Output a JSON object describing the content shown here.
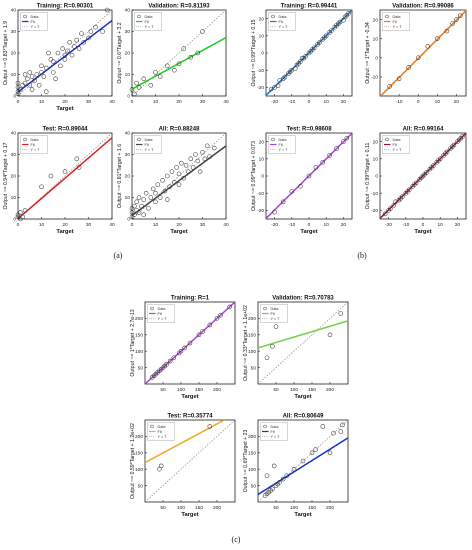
{
  "captions": [
    "(a)",
    "(b)",
    "(c)"
  ],
  "legend_labels": {
    "data": "Data",
    "fit": "Fit",
    "identity": "Y = T"
  },
  "chart_data": [
    {
      "id": "a-training",
      "type": "scatter",
      "group": "a",
      "title": "Training: R=0.90301",
      "xlabel": "Target",
      "ylabel": "Output ~= 0.83*Target + 1.9",
      "xlim": [
        0,
        40
      ],
      "ylim": [
        0,
        40
      ],
      "xticks": [
        0,
        10,
        20,
        30,
        40
      ],
      "yticks": [
        0,
        10,
        20,
        30,
        40
      ],
      "fit": {
        "slope": 0.83,
        "intercept": 1.9,
        "color": "#1030c8"
      },
      "points": [
        [
          0,
          2
        ],
        [
          0,
          4
        ],
        [
          0,
          6
        ],
        [
          0,
          1
        ],
        [
          1,
          3
        ],
        [
          2,
          5
        ],
        [
          3,
          6
        ],
        [
          3,
          10
        ],
        [
          4,
          8
        ],
        [
          5,
          5
        ],
        [
          5,
          11
        ],
        [
          6,
          3
        ],
        [
          6,
          9
        ],
        [
          7,
          7
        ],
        [
          8,
          10
        ],
        [
          9,
          5
        ],
        [
          10,
          11
        ],
        [
          10,
          14
        ],
        [
          11,
          9
        ],
        [
          12,
          13
        ],
        [
          12,
          2
        ],
        [
          14,
          17
        ],
        [
          15,
          11
        ],
        [
          15,
          16
        ],
        [
          17,
          20
        ],
        [
          18,
          14
        ],
        [
          19,
          22
        ],
        [
          20,
          17
        ],
        [
          20,
          19
        ],
        [
          21,
          21
        ],
        [
          22,
          25
        ],
        [
          23,
          19
        ],
        [
          24,
          23
        ],
        [
          25,
          26
        ],
        [
          26,
          22
        ],
        [
          27,
          29
        ],
        [
          28,
          25
        ],
        [
          30,
          27
        ],
        [
          31,
          30
        ],
        [
          33,
          32
        ],
        [
          36,
          30
        ],
        [
          38,
          40
        ],
        [
          13,
          20
        ],
        [
          16,
          8
        ]
      ]
    },
    {
      "id": "a-validation",
      "type": "scatter",
      "group": "a",
      "title": "Validation: R=0.81193",
      "xlabel": "",
      "ylabel": "Output ~= 0.6*Target + 3.2",
      "xlim": [
        0,
        40
      ],
      "ylim": [
        0,
        40
      ],
      "xticks": [
        0,
        10,
        20,
        30,
        40
      ],
      "yticks": [
        0,
        10,
        20,
        30,
        40
      ],
      "fit": {
        "slope": 0.6,
        "intercept": 3.2,
        "color": "#20c820"
      },
      "points": [
        [
          0,
          3
        ],
        [
          1,
          1
        ],
        [
          2,
          6
        ],
        [
          3,
          4
        ],
        [
          5,
          8
        ],
        [
          8,
          5
        ],
        [
          10,
          11
        ],
        [
          12,
          9
        ],
        [
          15,
          14
        ],
        [
          18,
          12
        ],
        [
          20,
          15
        ],
        [
          22,
          22
        ],
        [
          25,
          18
        ],
        [
          28,
          20
        ],
        [
          30,
          30
        ]
      ]
    },
    {
      "id": "a-test",
      "type": "scatter",
      "group": "a",
      "title": "Test: R=0.89044",
      "xlabel": "Target",
      "ylabel": "Output ~= 0.94*Target + 0.17",
      "xlim": [
        0,
        40
      ],
      "ylim": [
        0,
        40
      ],
      "xticks": [
        0,
        10,
        20,
        30,
        40
      ],
      "yticks": [
        0,
        10,
        20,
        30,
        40
      ],
      "fit": {
        "slope": 0.94,
        "intercept": 0.17,
        "color": "#e02020"
      },
      "points": [
        [
          0,
          1
        ],
        [
          0,
          2
        ],
        [
          1,
          0
        ],
        [
          1,
          3
        ],
        [
          2,
          1
        ],
        [
          3,
          4
        ],
        [
          10,
          15
        ],
        [
          14,
          20
        ],
        [
          20,
          22
        ],
        [
          25,
          28
        ],
        [
          26,
          24
        ]
      ]
    },
    {
      "id": "a-all",
      "type": "scatter",
      "group": "a",
      "title": "All: R=0.88248",
      "xlabel": "Target",
      "ylabel": "Output ~= 0.81*Target + 1.6",
      "xlim": [
        0,
        40
      ],
      "ylim": [
        0,
        40
      ],
      "xticks": [
        0,
        10,
        20,
        30,
        40
      ],
      "yticks": [
        0,
        10,
        20,
        30,
        40
      ],
      "fit": {
        "slope": 0.81,
        "intercept": 1.6,
        "color": "#444444"
      },
      "points": [
        [
          0,
          1
        ],
        [
          0,
          3
        ],
        [
          0,
          5
        ],
        [
          1,
          2
        ],
        [
          1,
          6
        ],
        [
          2,
          4
        ],
        [
          2,
          8
        ],
        [
          3,
          3
        ],
        [
          3,
          10
        ],
        [
          4,
          6
        ],
        [
          5,
          9
        ],
        [
          5,
          2
        ],
        [
          6,
          12
        ],
        [
          7,
          5
        ],
        [
          8,
          10
        ],
        [
          9,
          14
        ],
        [
          10,
          8
        ],
        [
          10,
          12
        ],
        [
          11,
          16
        ],
        [
          12,
          10
        ],
        [
          13,
          18
        ],
        [
          14,
          13
        ],
        [
          15,
          20
        ],
        [
          15,
          9
        ],
        [
          16,
          15
        ],
        [
          17,
          22
        ],
        [
          18,
          17
        ],
        [
          19,
          24
        ],
        [
          20,
          16
        ],
        [
          20,
          21
        ],
        [
          21,
          26
        ],
        [
          22,
          19
        ],
        [
          23,
          25
        ],
        [
          24,
          22
        ],
        [
          25,
          28
        ],
        [
          26,
          24
        ],
        [
          27,
          30
        ],
        [
          28,
          27
        ],
        [
          29,
          22
        ],
        [
          30,
          31
        ],
        [
          31,
          28
        ],
        [
          32,
          34
        ],
        [
          33,
          29
        ],
        [
          35,
          33
        ],
        [
          38,
          41
        ]
      ]
    },
    {
      "id": "b-training",
      "type": "scatter",
      "group": "b",
      "title": "Training: R=0.99441",
      "xlabel": "",
      "ylabel": "Output ~= 0.99*Target + 0.15",
      "xlim": [
        -25,
        25
      ],
      "ylim": [
        -25,
        25
      ],
      "xticks": [
        -20,
        -10,
        0,
        10,
        20
      ],
      "yticks": [
        -20,
        -10,
        0,
        10,
        20
      ],
      "fit": {
        "slope": 0.99,
        "intercept": 0.15,
        "color": "#1a7ad8"
      },
      "points": [
        [
          -22,
          -21
        ],
        [
          -20,
          -20
        ],
        [
          -18,
          -19
        ],
        [
          -17,
          -16
        ],
        [
          -15,
          -15
        ],
        [
          -14,
          -14
        ],
        [
          -12,
          -12
        ],
        [
          -11,
          -11
        ],
        [
          -10,
          -10
        ],
        [
          -8,
          -9
        ],
        [
          -7,
          -7
        ],
        [
          -6,
          -6
        ],
        [
          -5,
          -5
        ],
        [
          -4,
          -3
        ],
        [
          -3,
          -3
        ],
        [
          -2,
          -2
        ],
        [
          0,
          0
        ],
        [
          1,
          1
        ],
        [
          2,
          2
        ],
        [
          3,
          3
        ],
        [
          5,
          5
        ],
        [
          6,
          6
        ],
        [
          8,
          8
        ],
        [
          9,
          9
        ],
        [
          10,
          10
        ],
        [
          12,
          12
        ],
        [
          13,
          13
        ],
        [
          15,
          15
        ],
        [
          16,
          16
        ],
        [
          17,
          17
        ],
        [
          18,
          18
        ],
        [
          20,
          19
        ],
        [
          21,
          21
        ],
        [
          22,
          22
        ],
        [
          23,
          23
        ]
      ]
    },
    {
      "id": "b-validation",
      "type": "scatter",
      "group": "b",
      "title": "Validation: R=0.99086",
      "xlabel": "",
      "ylabel": "Output ~= 1*Target + -0.34",
      "xlim": [
        -20,
        25
      ],
      "ylim": [
        -20,
        25
      ],
      "xticks": [
        -10,
        0,
        10,
        20
      ],
      "yticks": [
        -10,
        0,
        10,
        20
      ],
      "fit": {
        "slope": 1.0,
        "intercept": -0.34,
        "color": "#f07a20"
      },
      "points": [
        [
          -15,
          -15
        ],
        [
          -10,
          -11
        ],
        [
          -5,
          -5
        ],
        [
          0,
          0
        ],
        [
          5,
          6
        ],
        [
          10,
          10
        ],
        [
          15,
          14
        ],
        [
          18,
          18
        ],
        [
          20,
          20
        ],
        [
          22,
          22
        ]
      ]
    },
    {
      "id": "b-test",
      "type": "scatter",
      "group": "b",
      "title": "Test: R=0.98608",
      "xlabel": "Target",
      "ylabel": "Output ~= 0.99*Target + 0.073",
      "xlim": [
        -25,
        25
      ],
      "ylim": [
        -25,
        25
      ],
      "xticks": [
        -20,
        -10,
        0,
        10,
        20
      ],
      "yticks": [
        -20,
        -10,
        0,
        10,
        20
      ],
      "fit": {
        "slope": 0.99,
        "intercept": 0.073,
        "color": "#b040d8"
      },
      "points": [
        [
          -20,
          -21
        ],
        [
          -15,
          -15
        ],
        [
          -10,
          -9
        ],
        [
          -5,
          -6
        ],
        [
          0,
          0
        ],
        [
          4,
          5
        ],
        [
          8,
          8
        ],
        [
          12,
          12
        ],
        [
          16,
          16
        ],
        [
          20,
          20
        ],
        [
          22,
          22
        ]
      ]
    },
    {
      "id": "b-all",
      "type": "scatter",
      "group": "b",
      "title": "All: R=0.99164",
      "xlabel": "Target",
      "ylabel": "Output ~= 0.99*Target + 0.11",
      "xlim": [
        -25,
        25
      ],
      "ylim": [
        -25,
        25
      ],
      "xticks": [
        -20,
        -10,
        0,
        10,
        20
      ],
      "yticks": [
        -20,
        -10,
        0,
        10,
        20
      ],
      "fit": {
        "slope": 0.99,
        "intercept": 0.11,
        "color": "#901840"
      },
      "points": [
        [
          -22,
          -22
        ],
        [
          -20,
          -20
        ],
        [
          -19,
          -19
        ],
        [
          -17,
          -17
        ],
        [
          -16,
          -15
        ],
        [
          -14,
          -14
        ],
        [
          -13,
          -13
        ],
        [
          -12,
          -12
        ],
        [
          -10,
          -10
        ],
        [
          -9,
          -9
        ],
        [
          -8,
          -8
        ],
        [
          -6,
          -6
        ],
        [
          -5,
          -5
        ],
        [
          -4,
          -4
        ],
        [
          -2,
          -2
        ],
        [
          -1,
          -1
        ],
        [
          0,
          0
        ],
        [
          1,
          1
        ],
        [
          2,
          2
        ],
        [
          4,
          4
        ],
        [
          5,
          5
        ],
        [
          6,
          6
        ],
        [
          8,
          8
        ],
        [
          9,
          9
        ],
        [
          10,
          10
        ],
        [
          12,
          12
        ],
        [
          13,
          13
        ],
        [
          14,
          14
        ],
        [
          16,
          16
        ],
        [
          17,
          17
        ],
        [
          18,
          18
        ],
        [
          20,
          20
        ],
        [
          21,
          21
        ],
        [
          22,
          22
        ],
        [
          23,
          23
        ]
      ]
    },
    {
      "id": "c-training",
      "type": "scatter",
      "group": "c",
      "title": "Training: R=1",
      "xlabel": "Target",
      "ylabel": "Output ~= 1*Target + 2.7e-13",
      "xlim": [
        0,
        250
      ],
      "ylim": [
        0,
        250
      ],
      "xticks": [
        50,
        100,
        150,
        200
      ],
      "yticks": [
        50,
        100,
        150,
        200
      ],
      "fit": {
        "slope": 1.0,
        "intercept": 0,
        "color": "#b040d8"
      },
      "points": [
        [
          20,
          20
        ],
        [
          25,
          25
        ],
        [
          30,
          30
        ],
        [
          35,
          35
        ],
        [
          40,
          40
        ],
        [
          45,
          45
        ],
        [
          50,
          50
        ],
        [
          55,
          55
        ],
        [
          60,
          60
        ],
        [
          70,
          70
        ],
        [
          80,
          80
        ],
        [
          95,
          95
        ],
        [
          100,
          100
        ],
        [
          110,
          110
        ],
        [
          125,
          125
        ],
        [
          150,
          150
        ],
        [
          160,
          160
        ],
        [
          180,
          180
        ],
        [
          200,
          200
        ],
        [
          210,
          210
        ],
        [
          235,
          235
        ]
      ]
    },
    {
      "id": "c-validation",
      "type": "scatter",
      "group": "c",
      "title": "Validation: R=0.70783",
      "xlabel": "Target",
      "ylabel": "Output ~= 0.33*Target + 1.1e+02",
      "xlim": [
        0,
        250
      ],
      "ylim": [
        0,
        250
      ],
      "xticks": [
        50,
        100,
        150,
        200
      ],
      "yticks": [
        50,
        100,
        150,
        200
      ],
      "fit": {
        "slope": 0.33,
        "intercept": 110,
        "color": "#70d040"
      },
      "points": [
        [
          25,
          80
        ],
        [
          40,
          115
        ],
        [
          50,
          175
        ],
        [
          200,
          150
        ],
        [
          230,
          215
        ]
      ]
    },
    {
      "id": "c-test",
      "type": "scatter",
      "group": "c",
      "title": "Test: R=0.35774",
      "xlabel": "Target",
      "ylabel": "Output ~= 0.59*Target + 1.2e+02",
      "xlim": [
        0,
        250
      ],
      "ylim": [
        0,
        250
      ],
      "xticks": [
        50,
        100,
        150,
        200
      ],
      "yticks": [
        50,
        100,
        150,
        200
      ],
      "fit": {
        "slope": 0.59,
        "intercept": 120,
        "color": "#f0a820"
      },
      "points": [
        [
          40,
          100
        ],
        [
          45,
          110
        ],
        [
          180,
          230
        ]
      ]
    },
    {
      "id": "c-all",
      "type": "scatter",
      "group": "c",
      "title": "All: R=0.80649",
      "xlabel": "Target",
      "ylabel": "Output ~= 0.69*Target + 23",
      "xlim": [
        0,
        250
      ],
      "ylim": [
        0,
        250
      ],
      "xticks": [
        50,
        100,
        150,
        200
      ],
      "yticks": [
        50,
        100,
        150,
        200
      ],
      "fit": {
        "slope": 0.69,
        "intercept": 23,
        "color": "#1030c8"
      },
      "points": [
        [
          20,
          20
        ],
        [
          25,
          25
        ],
        [
          30,
          30
        ],
        [
          35,
          35
        ],
        [
          40,
          40
        ],
        [
          45,
          110
        ],
        [
          50,
          50
        ],
        [
          55,
          55
        ],
        [
          60,
          60
        ],
        [
          70,
          70
        ],
        [
          80,
          80
        ],
        [
          100,
          100
        ],
        [
          125,
          125
        ],
        [
          150,
          150
        ],
        [
          160,
          160
        ],
        [
          180,
          230
        ],
        [
          200,
          150
        ],
        [
          210,
          210
        ],
        [
          230,
          215
        ],
        [
          235,
          235
        ],
        [
          25,
          80
        ]
      ]
    }
  ]
}
